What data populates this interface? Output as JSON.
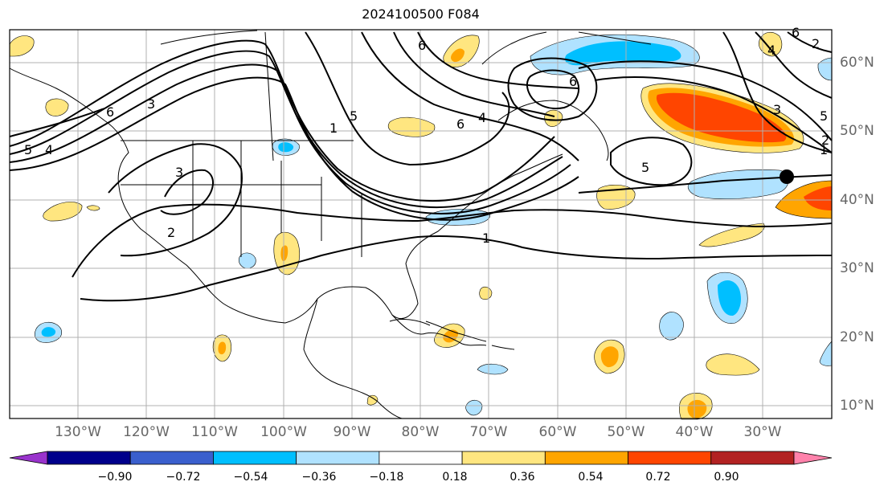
{
  "title": "2024100500 F084",
  "lat_labels": [
    {
      "value": 60,
      "label": "60°N"
    },
    {
      "value": 50,
      "label": "50°N"
    },
    {
      "value": 40,
      "label": "40°N"
    },
    {
      "value": 30,
      "label": "30°N"
    },
    {
      "value": 20,
      "label": "20°N"
    },
    {
      "value": 10,
      "label": "10°N"
    }
  ],
  "lon_labels": [
    {
      "value": -130,
      "label": "130°W"
    },
    {
      "value": -120,
      "label": "120°W"
    },
    {
      "value": -110,
      "label": "110°W"
    },
    {
      "value": -100,
      "label": "100°W"
    },
    {
      "value": -90,
      "label": "90°W"
    },
    {
      "value": -80,
      "label": "80°W"
    },
    {
      "value": -70,
      "label": "70°W"
    },
    {
      "value": -60,
      "label": "60°W"
    },
    {
      "value": -50,
      "label": "50°W"
    },
    {
      "value": -40,
      "label": "40°W"
    },
    {
      "value": -30,
      "label": "30°W"
    }
  ],
  "colorbar": {
    "colors": [
      "#9933cc",
      "#00008b",
      "#3a5fcd",
      "#00bfff",
      "#b0e2ff",
      "#ffffff",
      "#ffe680",
      "#ffa500",
      "#ff4500",
      "#b22222",
      "#ff82ab"
    ],
    "ticks": [
      "−0.90",
      "−0.72",
      "−0.54",
      "−0.36",
      "−0.18",
      "0.18",
      "0.36",
      "0.54",
      "0.72",
      "0.90"
    ]
  },
  "contour_labels": [
    "5",
    "4",
    "6",
    "3",
    "3",
    "2",
    "1",
    "5",
    "6",
    "4",
    "6",
    "6",
    "5",
    "1",
    "3",
    "5",
    "4",
    "6",
    "2",
    "1",
    "2"
  ],
  "shading_colors": {
    "light_yellow": "#ffe680",
    "orange": "#ffa500",
    "red_orange": "#ff4500",
    "light_blue": "#b0e2ff",
    "deep_sky_blue": "#00bfff"
  },
  "marker_icon": "black-dot-icon"
}
